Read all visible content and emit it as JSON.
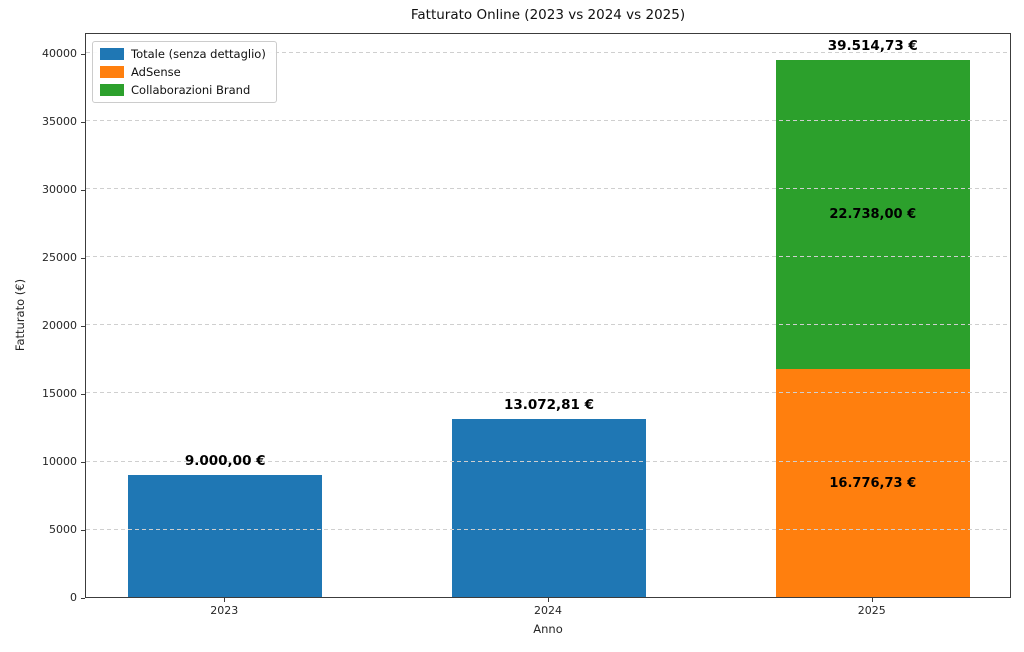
{
  "chart_data": {
    "type": "bar",
    "stacked": true,
    "title": "Fatturato Online (2023 vs 2024 vs 2025)",
    "xlabel": "Anno",
    "ylabel": "Fatturato (€)",
    "categories": [
      "2023",
      "2024",
      "2025"
    ],
    "series": [
      {
        "name": "Totale (senza dettaglio)",
        "color": "#1f77b4"
      },
      {
        "name": "AdSense",
        "color": "#ff7f0e"
      },
      {
        "name": "Collaborazioni Brand",
        "color": "#2ca02c"
      }
    ],
    "bars": [
      {
        "category": "2023",
        "total": 9000.0,
        "total_label": "9.000,00 €",
        "segments": [
          {
            "series": "Totale (senza dettaglio)",
            "value": 9000.0,
            "color": "#1f77b4",
            "label": ""
          }
        ]
      },
      {
        "category": "2024",
        "total": 13072.81,
        "total_label": "13.072,81 €",
        "segments": [
          {
            "series": "Totale (senza dettaglio)",
            "value": 13072.81,
            "color": "#1f77b4",
            "label": ""
          }
        ]
      },
      {
        "category": "2025",
        "total": 39514.73,
        "total_label": "39.514,73 €",
        "segments": [
          {
            "series": "AdSense",
            "value": 16776.73,
            "color": "#ff7f0e",
            "label": "16.776,73 €"
          },
          {
            "series": "Collaborazioni Brand",
            "value": 22738.0,
            "color": "#2ca02c",
            "label": "22.738,00 €"
          }
        ]
      }
    ],
    "yticks": [
      0,
      5000,
      10000,
      15000,
      20000,
      25000,
      30000,
      35000,
      40000
    ],
    "ylim": [
      0,
      41540
    ],
    "xlim": [
      -0.43,
      2.43
    ],
    "bar_width": 0.6,
    "grid": {
      "axis": "y",
      "style": "dashed",
      "color": "#cfcfcf"
    },
    "legend_position": "upper-left"
  }
}
